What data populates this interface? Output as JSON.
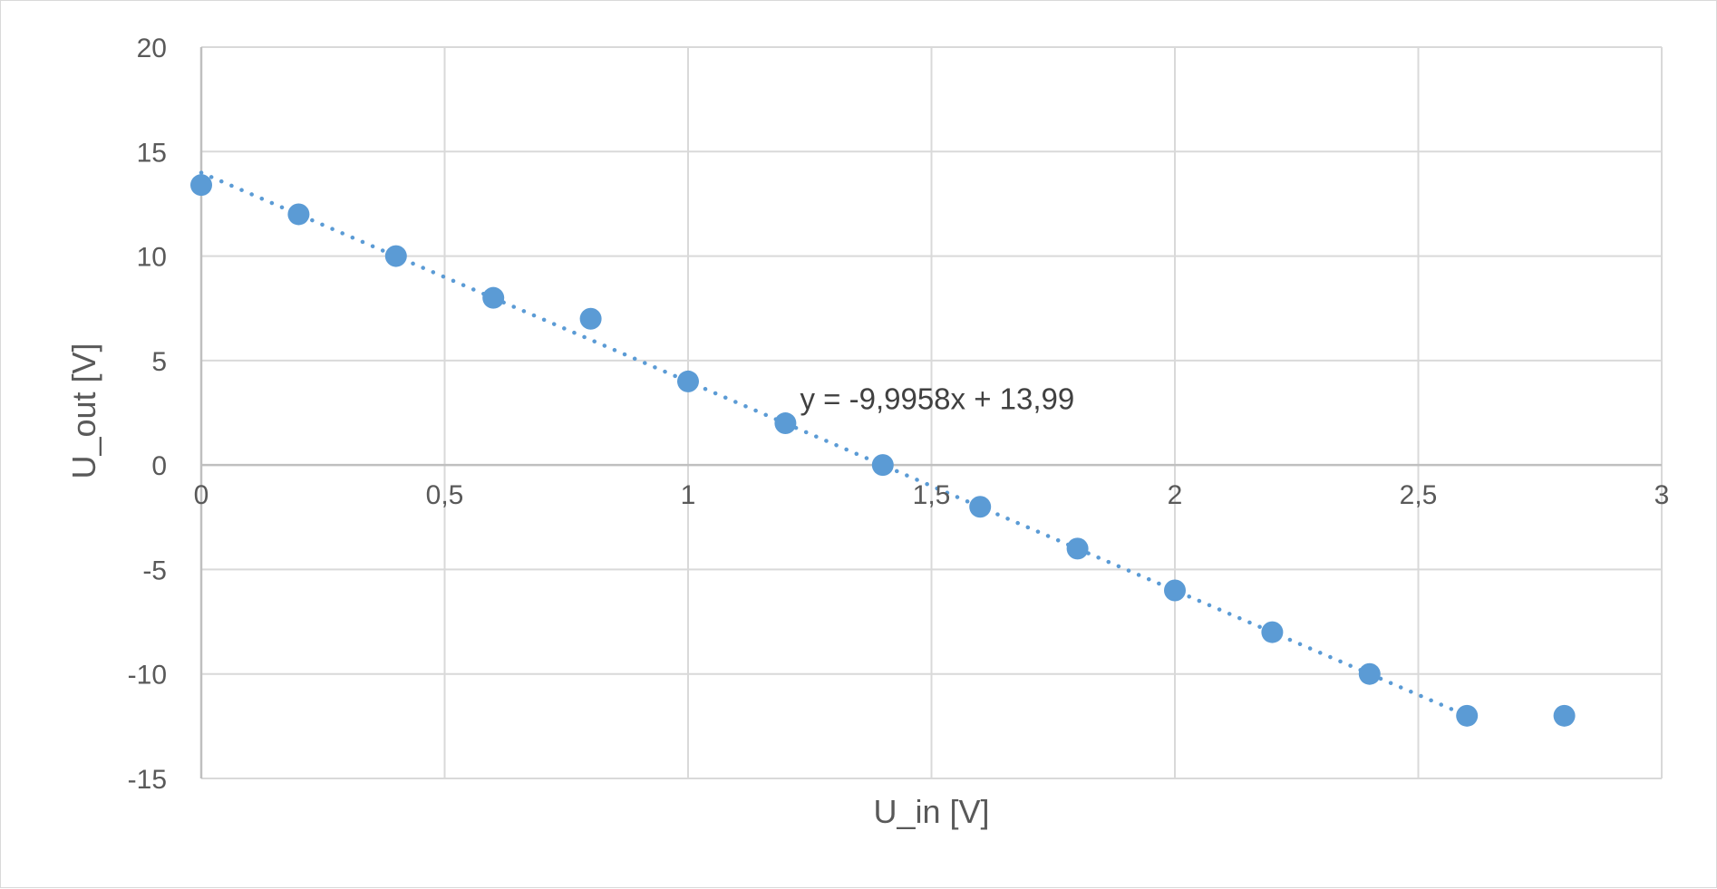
{
  "chart_data": {
    "type": "scatter",
    "xlabel": "U_in [V]",
    "ylabel": "U_out [V]",
    "xlim": [
      0,
      3
    ],
    "ylim": [
      -15,
      20
    ],
    "x_ticks": [
      0,
      0.5,
      1,
      1.5,
      2,
      2.5,
      3
    ],
    "x_tick_labels": [
      "0",
      "0,5",
      "1",
      "1,5",
      "2",
      "2,5",
      "3"
    ],
    "y_ticks": [
      20,
      15,
      10,
      5,
      0,
      -5,
      -10,
      -15
    ],
    "y_tick_labels": [
      "20",
      "15",
      "10",
      "5",
      "0",
      "-5",
      "-10",
      "-15"
    ],
    "grid": true,
    "legend": "none",
    "series": [
      {
        "x": [
          0,
          0.2,
          0.4,
          0.6,
          0.8,
          1.0,
          1.2,
          1.4,
          1.6,
          1.8,
          2.0,
          2.2,
          2.4,
          2.6,
          2.8
        ],
        "y": [
          13.4,
          12.0,
          10.0,
          8.0,
          7.0,
          4.0,
          2.0,
          0.0,
          -2.0,
          -4.0,
          -6.0,
          -8.0,
          -10.0,
          -12.0,
          -12.0
        ],
        "color": "#5b9bd5"
      }
    ],
    "trendline": {
      "type": "linear",
      "slope": -9.9958,
      "intercept": 13.99,
      "x_range": [
        0,
        2.6
      ],
      "color": "#5b9bd5",
      "style": "dotted",
      "equation_label": "y = -9,9958x + 13,99"
    }
  }
}
